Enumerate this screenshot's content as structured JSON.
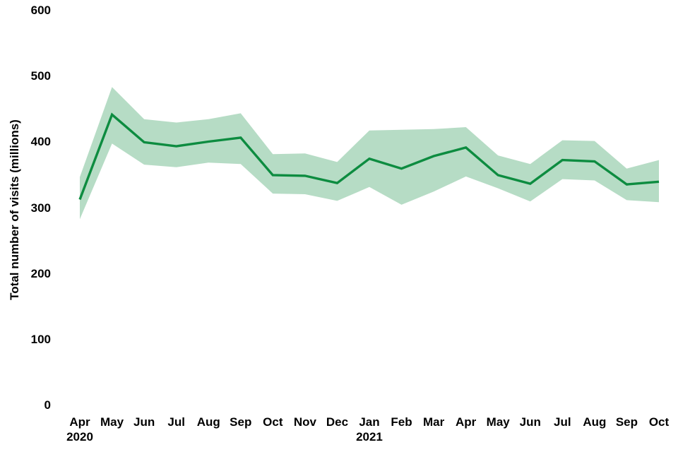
{
  "chart_data": {
    "type": "line",
    "title": "",
    "xlabel": "",
    "ylabel": "Total number of visits (millions)",
    "ylim": [
      0,
      600
    ],
    "grid": false,
    "legend": "none",
    "background": "#ffffff",
    "y_ticks": [
      "0",
      "100",
      "200",
      "300",
      "400",
      "500",
      "600"
    ],
    "x_tick_labels": [
      "Apr",
      "May",
      "Jun",
      "Jul",
      "Aug",
      "Sep",
      "Oct",
      "Nov",
      "Dec",
      "Jan",
      "Feb",
      "Mar",
      "Apr",
      "May",
      "Jun",
      "Jul",
      "Aug",
      "Sep",
      "Oct"
    ],
    "x_year_labels": [
      "2020",
      "",
      "",
      "",
      "",
      "",
      "",
      "",
      "",
      "2021",
      "",
      "",
      "",
      "",
      "",
      "",
      "",
      "",
      ""
    ],
    "series": [
      {
        "name": "Total number of visits",
        "role": "line",
        "values": [
          313,
          442,
          400,
          394,
          401,
          407,
          350,
          349,
          338,
          375,
          360,
          379,
          392,
          350,
          337,
          373,
          371,
          336,
          340
        ]
      },
      {
        "name": "Confidence band lower",
        "role": "band-lower",
        "values": [
          283,
          398,
          366,
          362,
          369,
          367,
          322,
          321,
          311,
          332,
          305,
          325,
          348,
          330,
          310,
          344,
          342,
          312,
          309
        ]
      },
      {
        "name": "Confidence band upper",
        "role": "band-upper",
        "values": [
          347,
          484,
          435,
          430,
          435,
          444,
          382,
          383,
          370,
          418,
          419,
          420,
          423,
          380,
          367,
          403,
          402,
          360,
          373
        ]
      }
    ],
    "colors": {
      "line": "#0d8c40",
      "band": "#0d8c40",
      "band_opacity": 0.3,
      "text": "#000000"
    }
  }
}
